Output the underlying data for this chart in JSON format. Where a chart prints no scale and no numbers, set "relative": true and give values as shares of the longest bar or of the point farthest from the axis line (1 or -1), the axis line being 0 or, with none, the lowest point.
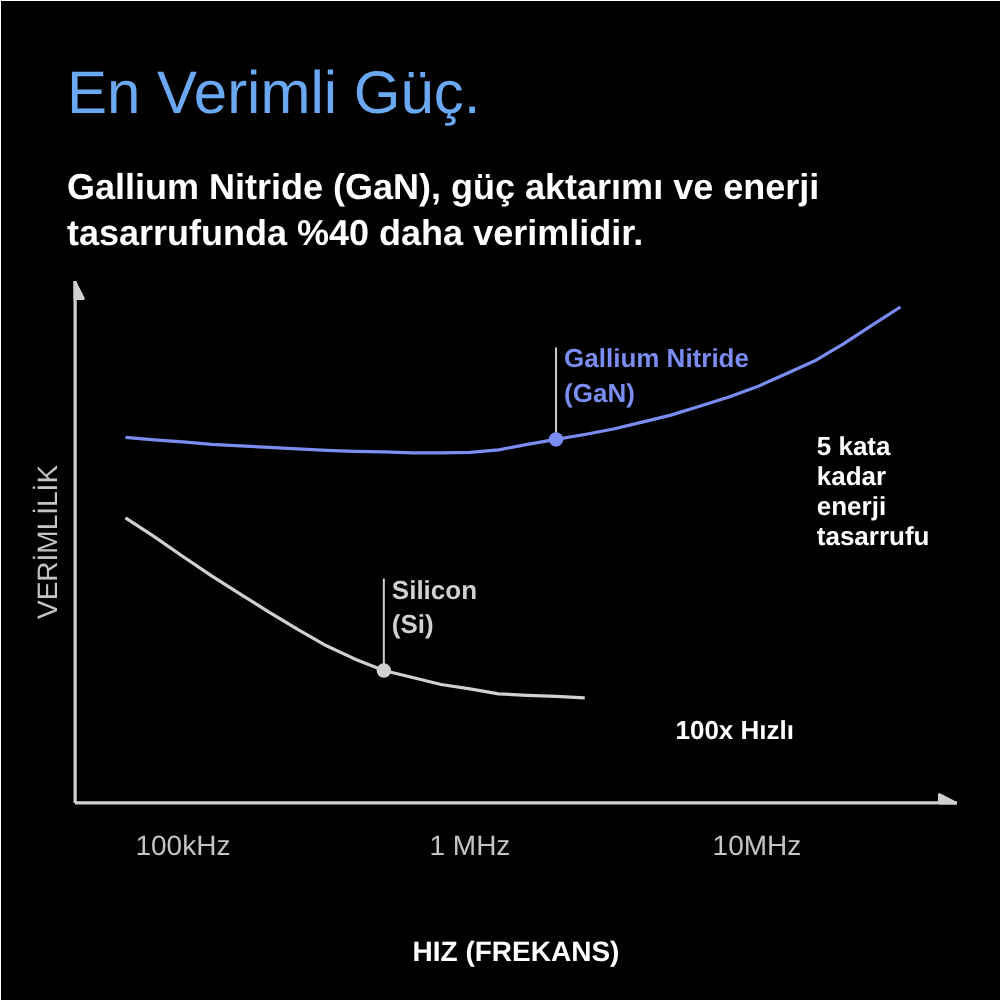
{
  "chart_data": {
    "type": "line",
    "title": "En Verimli Güç.",
    "subtitle": "Gallium Nitride (GaN), güç aktarımı ve enerji\ntasarrufunda %40 daha verimlidir.",
    "xlabel": "HIZ (FREKANS)",
    "ylabel": "VERİMLİLİK",
    "relative": true,
    "tick_labels": "x",
    "categories": [
      null,
      null,
      "100kHz",
      null,
      null,
      null,
      null,
      null,
      null,
      null,
      null,
      null,
      "1 MHz",
      null,
      null,
      null,
      null,
      null,
      null,
      null,
      null,
      null,
      "10MHz",
      null,
      null,
      null,
      null,
      null
    ],
    "series": [
      {
        "name": "Gallium Nitride\n(GaN)",
        "color": "#7a8cf0",
        "values": [
          0.737,
          0.732,
          0.728,
          0.723,
          0.72,
          0.717,
          0.714,
          0.711,
          0.709,
          0.708,
          0.706,
          0.706,
          0.707,
          0.712,
          0.723,
          0.733,
          0.743,
          0.754,
          0.768,
          0.782,
          0.8,
          0.818,
          0.839,
          0.865,
          0.891,
          0.925,
          0.963,
          1.0
        ]
      },
      {
        "name": "Silicon\n(Si)",
        "color": "#d0d0d0",
        "values": [
          0.575,
          0.537,
          0.497,
          0.458,
          0.421,
          0.385,
          0.35,
          0.317,
          0.29,
          0.267,
          0.253,
          0.239,
          0.23,
          0.22,
          0.217,
          0.215,
          0.212,
          null,
          null,
          null,
          null,
          null,
          null,
          null,
          null,
          null,
          null,
          null
        ]
      }
    ],
    "annotations": [
      "100x Hızlı",
      "5 kata\nkadar\nenerji\ntasarrufu"
    ]
  }
}
